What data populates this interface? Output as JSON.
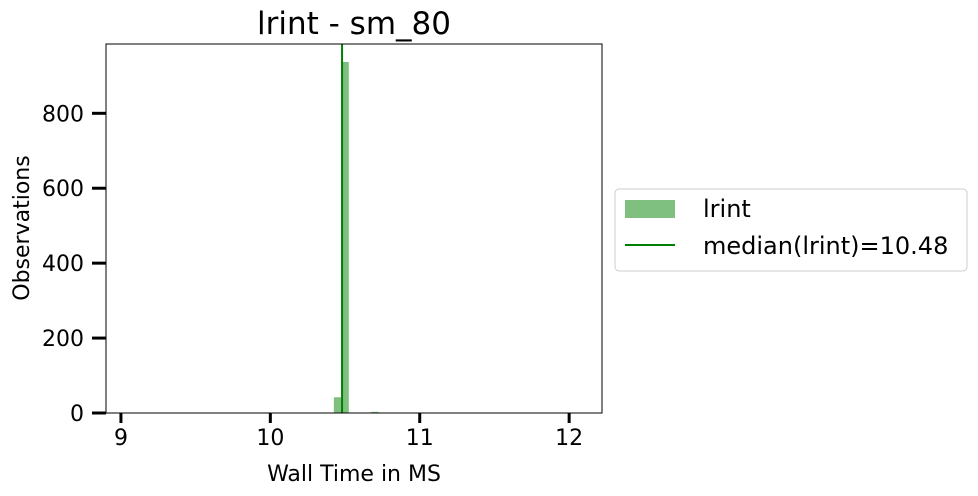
{
  "chart_data": {
    "type": "bar",
    "title": "lrint - sm_80",
    "xlabel": "Wall Time in MS",
    "ylabel": "Observations",
    "xlim": [
      8.9,
      12.22
    ],
    "ylim": [
      0,
      985
    ],
    "x_ticks": [
      9,
      10,
      11,
      12
    ],
    "y_ticks": [
      0,
      200,
      400,
      600,
      800
    ],
    "grid": false,
    "bin_width": 0.05,
    "series": [
      {
        "name": "lrint",
        "kind": "histogram",
        "color": "#7fbf7f",
        "bins": [
          {
            "x": 10.45,
            "count": 42
          },
          {
            "x": 10.5,
            "count": 937
          },
          {
            "x": 10.7,
            "count": 3
          }
        ]
      },
      {
        "name": "median(lrint)=10.48",
        "kind": "vline",
        "color": "#008000",
        "x": 10.48
      }
    ],
    "legend": {
      "placement": "right-outside",
      "entries": [
        "lrint",
        "median(lrint)=10.48"
      ]
    }
  }
}
